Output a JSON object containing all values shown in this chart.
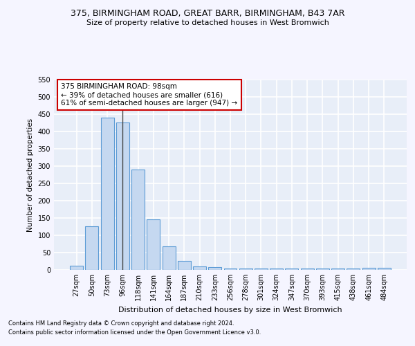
{
  "title1": "375, BIRMINGHAM ROAD, GREAT BARR, BIRMINGHAM, B43 7AR",
  "title2": "Size of property relative to detached houses in West Bromwich",
  "xlabel": "Distribution of detached houses by size in West Bromwich",
  "ylabel": "Number of detached properties",
  "categories": [
    "27sqm",
    "50sqm",
    "73sqm",
    "96sqm",
    "118sqm",
    "141sqm",
    "164sqm",
    "187sqm",
    "210sqm",
    "233sqm",
    "256sqm",
    "278sqm",
    "301sqm",
    "324sqm",
    "347sqm",
    "370sqm",
    "393sqm",
    "415sqm",
    "438sqm",
    "461sqm",
    "484sqm"
  ],
  "values": [
    13,
    127,
    440,
    427,
    291,
    147,
    69,
    27,
    11,
    9,
    5,
    4,
    5,
    4,
    4,
    4,
    4,
    5,
    4,
    6,
    6
  ],
  "bar_color": "#c5d8f0",
  "bar_edge_color": "#5b9bd5",
  "highlight_bar_index": 3,
  "highlight_line_color": "#444444",
  "ylim": [
    0,
    550
  ],
  "yticks": [
    0,
    50,
    100,
    150,
    200,
    250,
    300,
    350,
    400,
    450,
    500,
    550
  ],
  "annotation_text": "375 BIRMINGHAM ROAD: 98sqm\n← 39% of detached houses are smaller (616)\n61% of semi-detached houses are larger (947) →",
  "annotation_box_color": "#ffffff",
  "annotation_box_edge": "#cc0000",
  "bg_color": "#e8eef8",
  "grid_color": "#ffffff",
  "fig_bg_color": "#f5f5ff",
  "footnote1": "Contains HM Land Registry data © Crown copyright and database right 2024.",
  "footnote2": "Contains public sector information licensed under the Open Government Licence v3.0."
}
